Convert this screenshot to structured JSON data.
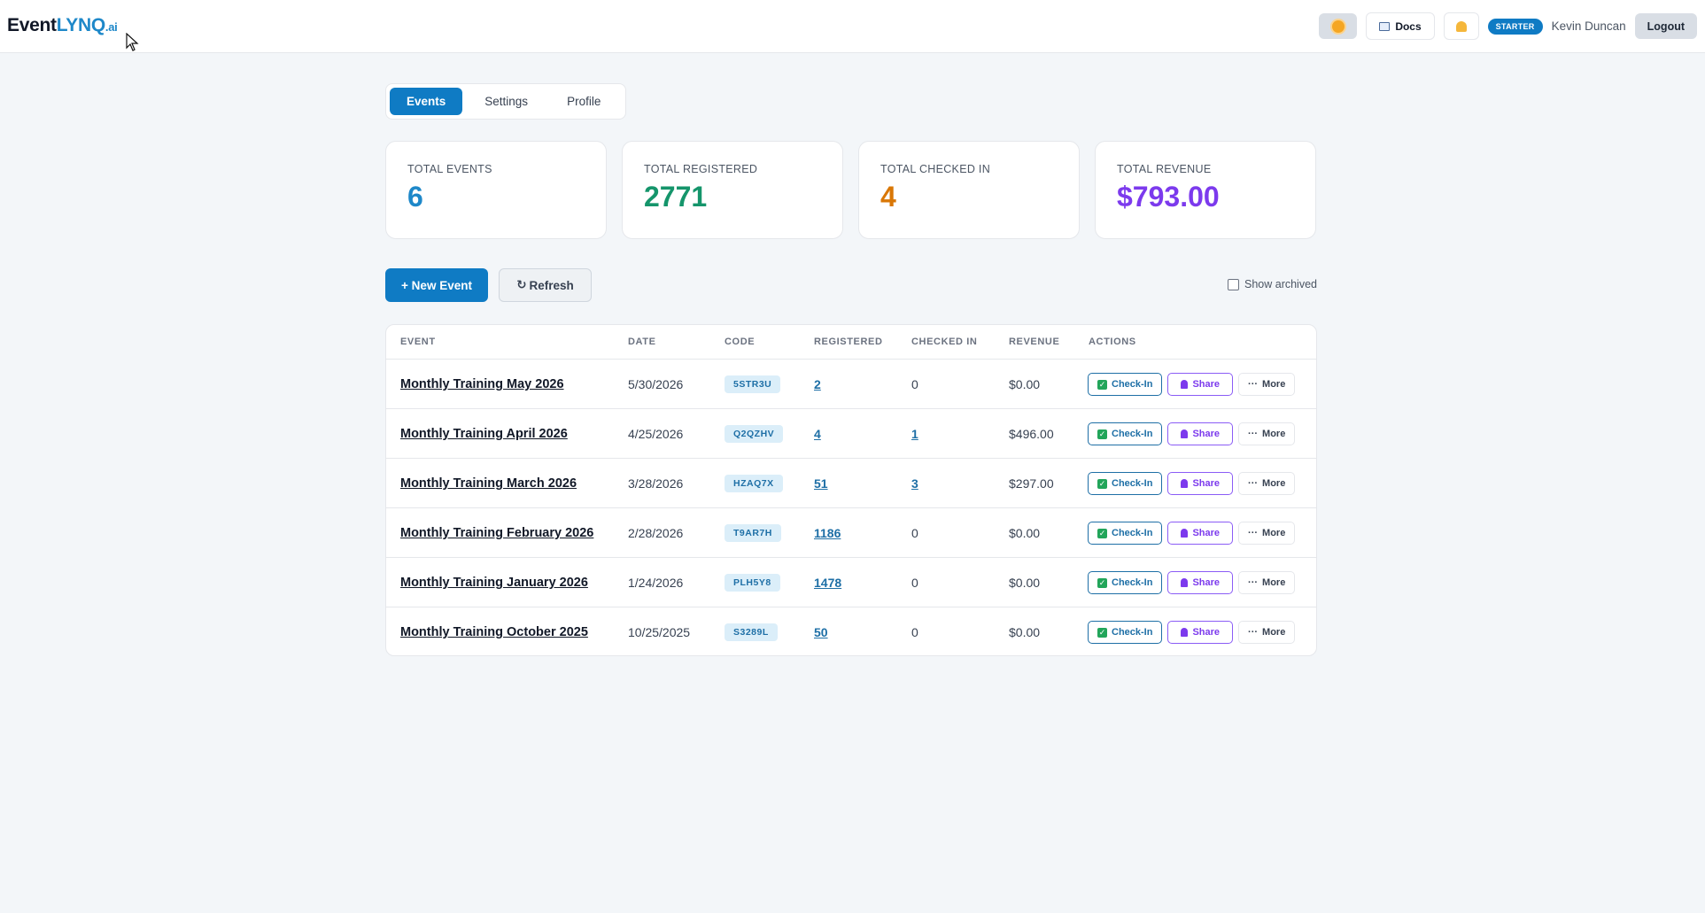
{
  "app": {
    "logo_part1": "Event",
    "logo_part2": "LYNQ",
    "logo_part3": ".ai"
  },
  "header": {
    "docs_label": "Docs",
    "plan_badge": "STARTER",
    "user_name": "Kevin Duncan",
    "logout_label": "Logout"
  },
  "tabs": [
    "Events",
    "Settings",
    "Profile"
  ],
  "stats": [
    {
      "label": "TOTAL EVENTS",
      "value": "6",
      "color": "#1e88c9"
    },
    {
      "label": "TOTAL REGISTERED",
      "value": "2771",
      "color": "#15956b"
    },
    {
      "label": "TOTAL CHECKED IN",
      "value": "4",
      "color": "#d97706"
    },
    {
      "label": "TOTAL REVENUE",
      "value": "$793.00",
      "color": "#7c3aed"
    }
  ],
  "toolbar": {
    "new_event_label": "+ New Event",
    "refresh_label": "Refresh",
    "show_archived_label": "Show archived"
  },
  "table": {
    "headers": [
      "EVENT",
      "DATE",
      "CODE",
      "REGISTERED",
      "CHECKED IN",
      "REVENUE",
      "ACTIONS"
    ],
    "action_labels": {
      "checkin": "Check-In",
      "share": "Share",
      "more": "More"
    },
    "rows": [
      {
        "event": "Monthly Training May 2026",
        "date": "5/30/2026",
        "code": "5STR3U",
        "registered": "2",
        "checked_in": "0",
        "checked_in_link": false,
        "revenue": "$0.00"
      },
      {
        "event": "Monthly Training April 2026",
        "date": "4/25/2026",
        "code": "Q2QZHV",
        "registered": "4",
        "checked_in": "1",
        "checked_in_link": true,
        "revenue": "$496.00"
      },
      {
        "event": "Monthly Training March 2026",
        "date": "3/28/2026",
        "code": "HZAQ7X",
        "registered": "51",
        "checked_in": "3",
        "checked_in_link": true,
        "revenue": "$297.00"
      },
      {
        "event": "Monthly Training February 2026",
        "date": "2/28/2026",
        "code": "T9AR7H",
        "registered": "1186",
        "checked_in": "0",
        "checked_in_link": false,
        "revenue": "$0.00"
      },
      {
        "event": "Monthly Training January 2026",
        "date": "1/24/2026",
        "code": "PLH5Y8",
        "registered": "1478",
        "checked_in": "0",
        "checked_in_link": false,
        "revenue": "$0.00"
      },
      {
        "event": "Monthly Training October 2025",
        "date": "10/25/2025",
        "code": "S3289L",
        "registered": "50",
        "checked_in": "0",
        "checked_in_link": false,
        "revenue": "$0.00"
      }
    ]
  }
}
